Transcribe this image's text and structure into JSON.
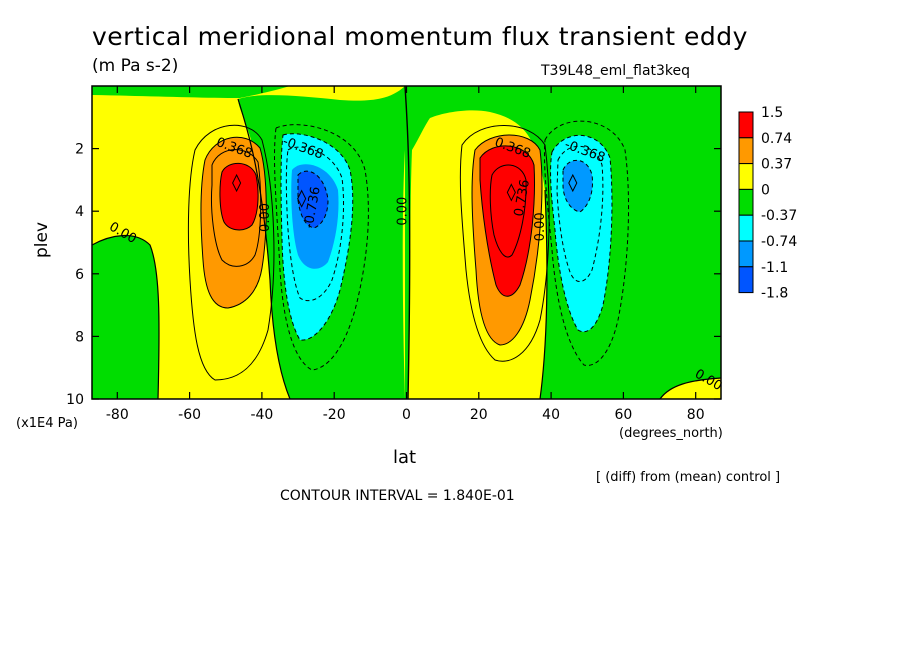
{
  "chart_data": {
    "type": "contour",
    "title": "vertical meridional momentum flux transient eddy",
    "units": "(m Pa s-2)",
    "experiment": "T39L48_eml_flat3keq",
    "xlabel": "lat",
    "x_units": "(degrees_north)",
    "ylabel": "plev",
    "y_units": "(x1E4 Pa)",
    "xlim": [
      -87,
      87
    ],
    "ylim": [
      10,
      0
    ],
    "x_ticks": [
      -80,
      -60,
      -40,
      -20,
      0,
      20,
      40,
      60,
      80
    ],
    "x_tick_labels": [
      "-80",
      "-60",
      "-40",
      "-20",
      "0",
      "20",
      "40",
      "60",
      "80"
    ],
    "y_ticks": [
      2,
      4,
      6,
      8,
      10
    ],
    "y_tick_labels": [
      "2",
      "4",
      "6",
      "8",
      "10"
    ],
    "legend": {
      "placement": "right",
      "labels": [
        "1.5",
        "0.74",
        "0.37",
        "0",
        "-0.37",
        "-0.74",
        "-1.1",
        "-1.8"
      ],
      "colors": [
        "#ff0000",
        "#ff9900",
        "#ffff00",
        "#00dd00",
        "#00ffff",
        "#0099ff",
        "#0055ff"
      ]
    },
    "contour_labels": [
      {
        "text": "0.368",
        "x": -48,
        "y": 2.1
      },
      {
        "text": "-0.368",
        "x": -29,
        "y": 2.1
      },
      {
        "text": "-0.736",
        "x": -25,
        "y": 3.9
      },
      {
        "text": "0.00",
        "x": -38,
        "y": 4.2
      },
      {
        "text": "0.00",
        "x": -79,
        "y": 4.8
      },
      {
        "text": "0.00",
        "x": 0,
        "y": 4.0
      },
      {
        "text": "0.368",
        "x": 29,
        "y": 2.1
      },
      {
        "text": "0.736",
        "x": 33,
        "y": 3.6
      },
      {
        "text": "0.00",
        "x": 38,
        "y": 4.5
      },
      {
        "text": "-0.368",
        "x": 49,
        "y": 2.2
      },
      {
        "text": "0.00",
        "x": 83,
        "y": 9.5
      }
    ],
    "extrema": [
      {
        "x": -47,
        "y": 3.1,
        "value": "max"
      },
      {
        "x": -29,
        "y": 3.6,
        "value": "min"
      },
      {
        "x": 29,
        "y": 3.4,
        "value": "max"
      },
      {
        "x": 46,
        "y": 3.1,
        "value": "min"
      }
    ],
    "note": "[ (diff) from (mean) control ]",
    "contour_interval": "CONTOUR INTERVAL = 1.840E-01"
  }
}
